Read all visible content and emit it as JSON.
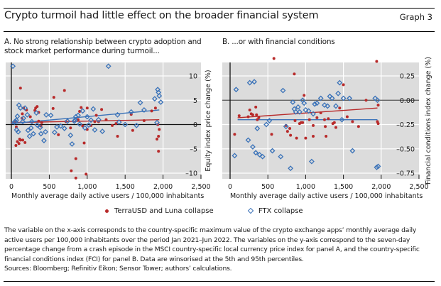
{
  "header": {
    "title": "Crypto turmoil had little effect on the broader financial system",
    "graph_number": "Graph 3"
  },
  "legend": {
    "series_a": "TerraUSD and Luna collapse",
    "series_b": "FTX collapse"
  },
  "colors": {
    "terra": "#b82a2a",
    "ftx": "#3a72b8",
    "plot_bg": "#dcdcdc",
    "grid": "#ffffff"
  },
  "notes": "The variable on the x-axis corresponds to the country-specific maximum value of the crypto exchange apps’ monthly average daily active users per 100,000 inhabitants over the period Jan 2021–Jun 2022. The variables on the y-axis correspond to the seven-day percentage change from a crash episode in the MSCI country-specific local currency price index for panel A, and the country-specific financial conditions index (FCI) for panel B. Data are winsorised at the 5th and 95th percentiles.",
  "sources": "Sources: Bloomberg; Refinitiv Eikon; Sensor Tower; authors’ calculations.",
  "chart_data": [
    {
      "type": "scatter",
      "panel": "A",
      "title": "A. No strong relationship between crypto adoption and stock market performance during turmoil...",
      "title_line1": "A. No strong relationship between crypto adoption and",
      "title_line2": "stock market performance during turmoil...",
      "xlabel": "Monthly average daily active users / 100,000 inhabitants",
      "ylabel": "Equity index price change (%)",
      "xlim": [
        -80,
        2500
      ],
      "ylim": [
        -11,
        13
      ],
      "xticks": [
        0,
        500,
        1000,
        1500,
        2000,
        2500
      ],
      "xtick_labels": [
        "0",
        "500",
        "1,000",
        "1,500",
        "2,000",
        "2,500"
      ],
      "yticks": [
        10,
        5,
        0,
        -5,
        -10
      ],
      "ytick_labels": [
        "10",
        "5",
        "0",
        "–5",
        "–10"
      ],
      "grid": true,
      "y_axis_position": "right",
      "series": [
        {
          "name": "TerraUSD and Luna collapse",
          "marker": "dot",
          "points": [
            [
              60,
              -4.3
            ],
            [
              80,
              -3.5
            ],
            [
              100,
              -3.9
            ],
            [
              110,
              -3.0
            ],
            [
              120,
              -3.2
            ],
            [
              150,
              -3.2
            ],
            [
              180,
              -3.7
            ],
            [
              50,
              0.8
            ],
            [
              65,
              -0.5
            ],
            [
              120,
              7.5
            ],
            [
              140,
              1.3
            ],
            [
              145,
              2.2
            ],
            [
              160,
              3.4
            ],
            [
              200,
              3.0
            ],
            [
              250,
              1.6
            ],
            [
              310,
              2.9
            ],
            [
              320,
              3.4
            ],
            [
              340,
              3.7
            ],
            [
              360,
              2.5
            ],
            [
              360,
              0.7
            ],
            [
              390,
              -0.3
            ],
            [
              400,
              0.4
            ],
            [
              550,
              3.3
            ],
            [
              560,
              5.6
            ],
            [
              620,
              -2.1
            ],
            [
              700,
              7.0
            ],
            [
              720,
              0.6
            ],
            [
              780,
              -0.7
            ],
            [
              790,
              -9.5
            ],
            [
              850,
              -11.0
            ],
            [
              850,
              -7.0
            ],
            [
              880,
              1.0
            ],
            [
              900,
              2.7
            ],
            [
              920,
              3.5
            ],
            [
              940,
              -0.3
            ],
            [
              960,
              -3.8
            ],
            [
              985,
              -10.2
            ],
            [
              1000,
              3.4
            ],
            [
              1000,
              -1.0
            ],
            [
              1050,
              -0.2
            ],
            [
              1100,
              0.6
            ],
            [
              1120,
              1.9
            ],
            [
              1150,
              0.6
            ],
            [
              1190,
              3.1
            ],
            [
              1250,
              1.0
            ],
            [
              1330,
              -0.2
            ],
            [
              1380,
              0.2
            ],
            [
              1400,
              -2.4
            ],
            [
              1580,
              2.1
            ],
            [
              1600,
              -1.2
            ],
            [
              1750,
              0.8
            ],
            [
              1850,
              2.8
            ],
            [
              1900,
              3.4
            ],
            [
              1920,
              -3.0
            ],
            [
              1930,
              0.0
            ],
            [
              1940,
              -2.4
            ],
            [
              1940,
              -5.5
            ],
            [
              1950,
              -1.0
            ]
          ]
        },
        {
          "name": "FTX collapse",
          "marker": "diamond",
          "points": [
            [
              20,
              12.0
            ],
            [
              40,
              0.5
            ],
            [
              55,
              0.6
            ],
            [
              65,
              0.9
            ],
            [
              70,
              -1.1
            ],
            [
              80,
              1.7
            ],
            [
              90,
              -1.5
            ],
            [
              100,
              4.0
            ],
            [
              120,
              3.4
            ],
            [
              150,
              0.6
            ],
            [
              160,
              1.3
            ],
            [
              180,
              3.4
            ],
            [
              210,
              2.0
            ],
            [
              220,
              -1.2
            ],
            [
              240,
              -2.4
            ],
            [
              260,
              -0.7
            ],
            [
              270,
              0.6
            ],
            [
              290,
              -1.9
            ],
            [
              330,
              2.4
            ],
            [
              340,
              -0.1
            ],
            [
              380,
              -0.6
            ],
            [
              390,
              -1.9
            ],
            [
              430,
              -3.3
            ],
            [
              450,
              -1.5
            ],
            [
              460,
              2.0
            ],
            [
              520,
              1.9
            ],
            [
              570,
              -1.6
            ],
            [
              600,
              -0.5
            ],
            [
              650,
              -0.3
            ],
            [
              700,
              -0.8
            ],
            [
              740,
              0.7
            ],
            [
              780,
              -2.2
            ],
            [
              800,
              -4.0
            ],
            [
              830,
              0.7
            ],
            [
              840,
              0.9
            ],
            [
              850,
              1.6
            ],
            [
              880,
              1.9
            ],
            [
              900,
              0.1
            ],
            [
              940,
              2.8
            ],
            [
              970,
              -0.7
            ],
            [
              1000,
              1.6
            ],
            [
              1020,
              -0.1
            ],
            [
              1050,
              0.9
            ],
            [
              1080,
              3.2
            ],
            [
              1100,
              -1.1
            ],
            [
              1150,
              1.0
            ],
            [
              1200,
              -1.4
            ],
            [
              1280,
              12.0
            ],
            [
              1400,
              2.0
            ],
            [
              1420,
              0.5
            ],
            [
              1500,
              0.0
            ],
            [
              1580,
              2.6
            ],
            [
              1650,
              -0.2
            ],
            [
              1700,
              4.5
            ],
            [
              1750,
              3.0
            ],
            [
              1890,
              5.3
            ],
            [
              1920,
              0.4
            ],
            [
              1930,
              7.2
            ],
            [
              1940,
              6.6
            ],
            [
              1950,
              5.9
            ],
            [
              1970,
              4.6
            ]
          ]
        }
      ],
      "trendlines": [
        {
          "series": "TerraUSD and Luna collapse",
          "from": [
            0,
            0.4
          ],
          "to": [
            1950,
            1.0
          ]
        },
        {
          "series": "FTX collapse",
          "from": [
            0,
            0.2
          ],
          "to": [
            1950,
            3.0
          ]
        }
      ]
    },
    {
      "type": "scatter",
      "panel": "B",
      "title": "B. ...or with financial conditions",
      "xlabel": "Monthly average daily active users / 100,000 inhabitants",
      "ylabel": "Financial conditions index change (%)",
      "xlim": [
        -80,
        2500
      ],
      "ylim": [
        -0.82,
        0.44
      ],
      "xticks": [
        0,
        500,
        1000,
        1500,
        2000,
        2500
      ],
      "xtick_labels": [
        "0",
        "500",
        "1,000",
        "1,500",
        "2,000",
        "2,500"
      ],
      "yticks": [
        0.25,
        0.0,
        -0.25,
        -0.5,
        -0.75
      ],
      "ytick_labels": [
        "0.25",
        "0.00",
        "–0.25",
        "–0.50",
        "–0.75"
      ],
      "grid": true,
      "y_axis_position": "right",
      "series": [
        {
          "name": "TerraUSD and Luna collapse",
          "marker": "dot",
          "points": [
            [
              60,
              -0.35
            ],
            [
              120,
              -0.16
            ],
            [
              240,
              -0.17
            ],
            [
              260,
              -0.1
            ],
            [
              280,
              -0.14
            ],
            [
              300,
              -0.15
            ],
            [
              350,
              -0.15
            ],
            [
              360,
              -0.2
            ],
            [
              380,
              -0.18
            ],
            [
              340,
              -0.07
            ],
            [
              550,
              -0.35
            ],
            [
              580,
              0.43
            ],
            [
              740,
              -0.26
            ],
            [
              760,
              -0.32
            ],
            [
              790,
              -0.29
            ],
            [
              800,
              -0.36
            ],
            [
              850,
              0.27
            ],
            [
              860,
              -0.21
            ],
            [
              880,
              -0.39
            ],
            [
              920,
              -0.24
            ],
            [
              940,
              -0.23
            ],
            [
              960,
              -0.23
            ],
            [
              980,
              0.05
            ],
            [
              1000,
              -0.39
            ],
            [
              1050,
              -0.2
            ],
            [
              1100,
              -0.26
            ],
            [
              1100,
              -0.37
            ],
            [
              1150,
              -0.18
            ],
            [
              1200,
              -0.13
            ],
            [
              1250,
              -0.2
            ],
            [
              1260,
              -0.27
            ],
            [
              1270,
              -0.37
            ],
            [
              1300,
              -0.19
            ],
            [
              1360,
              -0.24
            ],
            [
              1380,
              -0.23
            ],
            [
              1400,
              -0.28
            ],
            [
              1450,
              -0.08
            ],
            [
              1500,
              0.16
            ],
            [
              1550,
              -0.17
            ],
            [
              1620,
              -0.22
            ],
            [
              1700,
              -0.27
            ],
            [
              1800,
              0.0
            ],
            [
              1940,
              0.4
            ],
            [
              1950,
              -0.22
            ],
            [
              1960,
              -0.24
            ],
            [
              1960,
              -0.05
            ]
          ]
        },
        {
          "name": "FTX collapse",
          "marker": "diamond",
          "points": [
            [
              60,
              -0.57
            ],
            [
              80,
              0.11
            ],
            [
              240,
              -0.41
            ],
            [
              260,
              0.18
            ],
            [
              300,
              -0.48
            ],
            [
              320,
              0.19
            ],
            [
              340,
              -0.54
            ],
            [
              360,
              -0.29
            ],
            [
              390,
              -0.56
            ],
            [
              430,
              -0.58
            ],
            [
              480,
              -0.25
            ],
            [
              520,
              -0.21
            ],
            [
              560,
              -0.52
            ],
            [
              670,
              -0.58
            ],
            [
              700,
              0.1
            ],
            [
              740,
              -0.27
            ],
            [
              800,
              -0.7
            ],
            [
              830,
              -0.02
            ],
            [
              850,
              -0.09
            ],
            [
              870,
              -0.12
            ],
            [
              900,
              -0.07
            ],
            [
              920,
              -0.12
            ],
            [
              960,
              0.0
            ],
            [
              980,
              -0.03
            ],
            [
              1000,
              -0.1
            ],
            [
              1040,
              -0.11
            ],
            [
              1080,
              -0.63
            ],
            [
              1100,
              -0.14
            ],
            [
              1120,
              -0.04
            ],
            [
              1150,
              -0.03
            ],
            [
              1200,
              0.02
            ],
            [
              1250,
              -0.05
            ],
            [
              1290,
              -0.06
            ],
            [
              1320,
              0.04
            ],
            [
              1350,
              0.02
            ],
            [
              1400,
              -0.06
            ],
            [
              1430,
              0.07
            ],
            [
              1450,
              0.18
            ],
            [
              1480,
              -0.2
            ],
            [
              1500,
              0.02
            ],
            [
              1580,
              0.02
            ],
            [
              1620,
              -0.52
            ],
            [
              1920,
              0.02
            ],
            [
              1950,
              0.0
            ],
            [
              1940,
              -0.69
            ],
            [
              1960,
              -0.68
            ]
          ]
        }
      ],
      "trendlines": [
        {
          "series": "TerraUSD and Luna collapse",
          "from": [
            100,
            -0.18
          ],
          "to": [
            1950,
            -0.08
          ]
        },
        {
          "series": "FTX collapse",
          "from": [
            100,
            -0.2
          ],
          "to": [
            1950,
            -0.2
          ]
        }
      ]
    }
  ]
}
